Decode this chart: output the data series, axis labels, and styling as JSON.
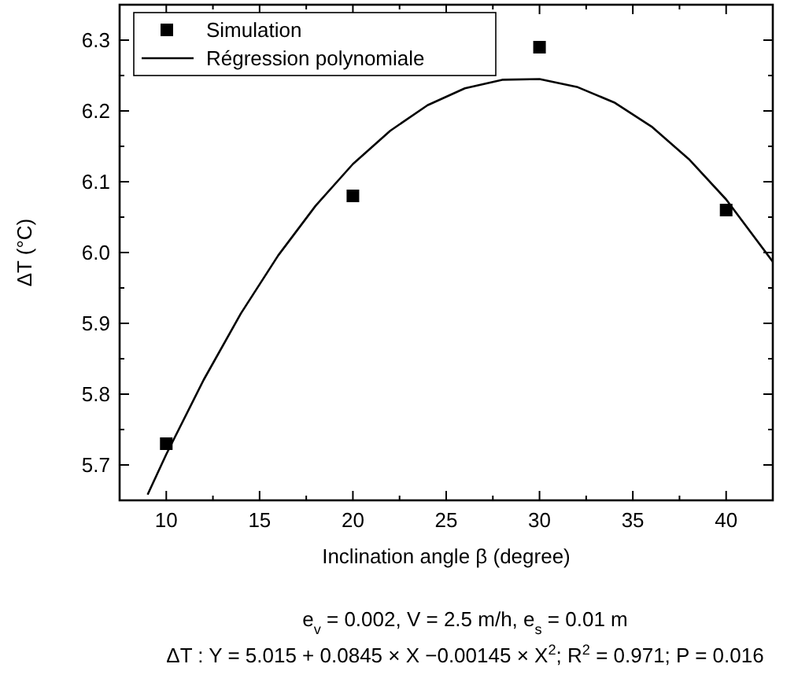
{
  "chart_data": {
    "type": "scatter",
    "xlabel": "Inclination angle β (degree)",
    "ylabel": "ΔT (°C)",
    "xlim": [
      7.5,
      42.5
    ],
    "ylim": [
      5.65,
      6.35
    ],
    "xticks": [
      10,
      {
        "value": 12.5,
        "label": null
      },
      15,
      {
        "value": 17.5,
        "label": null
      },
      20,
      {
        "value": 22.5,
        "label": null
      },
      25,
      {
        "value": 27.5,
        "label": null
      },
      30,
      {
        "value": 32.5,
        "label": null
      },
      35,
      {
        "value": 37.5,
        "label": null
      },
      40
    ],
    "yticks": [
      {
        "value": 5.65,
        "label": null
      },
      5.7,
      {
        "value": 5.75,
        "label": null
      },
      5.8,
      {
        "value": 5.85,
        "label": null
      },
      5.9,
      {
        "value": 5.95,
        "label": null
      },
      {
        "value": 6,
        "label": "6.0"
      },
      {
        "value": 6.05,
        "label": null
      },
      6.1,
      {
        "value": 6.15,
        "label": null
      },
      6.2,
      {
        "value": 6.25,
        "label": null
      },
      6.3
    ],
    "grid": false,
    "legend": "top left",
    "series": [
      {
        "name": "Simulation",
        "marker": "square",
        "color": "#000000",
        "x": [
          10,
          20,
          30,
          40
        ],
        "values": [
          5.73,
          6.08,
          6.29,
          6.06
        ]
      },
      {
        "name": "Régression polynomiale",
        "type": "line",
        "marker": "none",
        "line_style": "solid",
        "color": "#000000",
        "x": [
          9,
          10,
          12,
          14,
          16,
          18,
          20,
          22,
          24,
          26,
          28,
          30,
          32,
          34,
          36,
          38,
          40,
          42.5
        ],
        "values": [
          5.658,
          5.715,
          5.82,
          5.914,
          5.996,
          6.066,
          6.125,
          6.172,
          6.208,
          6.232,
          6.244,
          6.245,
          6.234,
          6.212,
          6.178,
          6.132,
          6.075,
          5.987
        ]
      }
    ],
    "annotations": [
      "e$_{v}$ = 0.002, V = 2.5 m/h, e$_{s}$ = 0.01 m",
      "ΔT : Y = 5.015 + 0.0845 × X −0.00145 × X$^{2}$; R$^{2}$ = 0.971; P = 0.016"
    ]
  }
}
